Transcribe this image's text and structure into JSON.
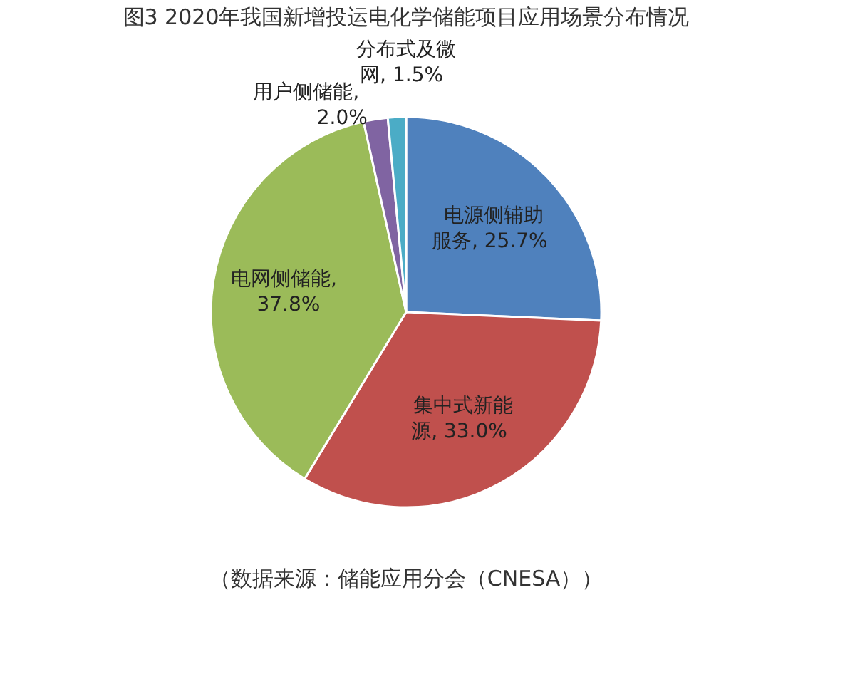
{
  "chart_data": {
    "type": "pie",
    "title": "图3 2020年我国新增投运电化学储能项目应用场景分布情况",
    "categories": [
      "电源侧辅助服务",
      "集中式新能源",
      "电网侧储能",
      "用户侧储能",
      "分布式及微网"
    ],
    "values": [
      25.7,
      33.0,
      37.8,
      2.0,
      1.5
    ],
    "colors": [
      "#4f81bd",
      "#c0504d",
      "#9bbb59",
      "#8064a2",
      "#4bacc6"
    ],
    "data_labels": true,
    "value_labels": [
      ", 25.7%",
      ", 33.0%",
      ", 37.8%",
      ", 2.0%",
      ", 1.5%"
    ],
    "legend": false,
    "annotations": [
      "（数据来源：储能应用分会（CNESA））"
    ]
  }
}
